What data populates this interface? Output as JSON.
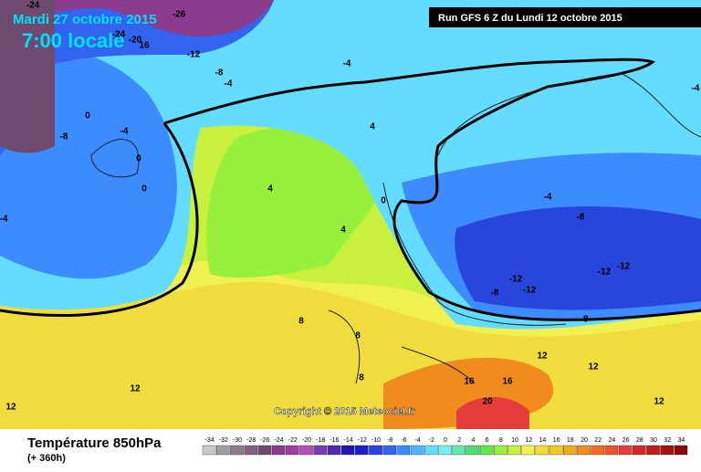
{
  "header": {
    "date": "Mardi 27 octobre 2015",
    "time": "7:00 locale",
    "run": "Run GFS 6 Z du Lundi 12 octobre 2015"
  },
  "footer": {
    "title": "Température 850hPa",
    "lead": "(+ 360h)",
    "copyright": "Copyright © 2015 Meteociel.fr"
  },
  "legend": {
    "values": [
      -34,
      -32,
      -30,
      -28,
      -26,
      -24,
      -22,
      -20,
      -18,
      -16,
      -14,
      -12,
      -10,
      -8,
      -6,
      -4,
      -2,
      0,
      2,
      4,
      6,
      8,
      10,
      12,
      14,
      16,
      18,
      20,
      22,
      24,
      26,
      28,
      30,
      32,
      34
    ],
    "colors": [
      "#c8c8c8",
      "#a0a0a0",
      "#8c7d8c",
      "#826482",
      "#6e4b6e",
      "#8c3c8c",
      "#a03ca0",
      "#b450b4",
      "#783cb4",
      "#5028b4",
      "#2814b4",
      "#1e1ec8",
      "#2846dc",
      "#3264f0",
      "#3c8cff",
      "#50b4ff",
      "#64dcff",
      "#78f0f0",
      "#64e6b4",
      "#50dc78",
      "#64e650",
      "#96f03c",
      "#c8f03c",
      "#f0f050",
      "#f0dc3c",
      "#f0c828",
      "#f0aa1e",
      "#f08c1e",
      "#f06e28",
      "#f05032",
      "#e63c3c",
      "#d22828",
      "#be1e1e",
      "#a01414",
      "#8c0a0a"
    ]
  },
  "contour_labels": [
    "-24",
    "-26",
    "-24",
    "-20",
    "16",
    "-12",
    "-8",
    "-4",
    "-4",
    "-4",
    "0",
    "-8",
    "-4",
    "0",
    "0",
    "4",
    "4",
    "4",
    "0",
    "-4",
    "-8",
    "-8",
    "-12",
    "-12",
    "-12",
    "-12",
    "-8",
    "12",
    "8",
    "8",
    "8",
    "12",
    "16",
    "16",
    "20",
    "12",
    "12",
    "12",
    "-4"
  ]
}
